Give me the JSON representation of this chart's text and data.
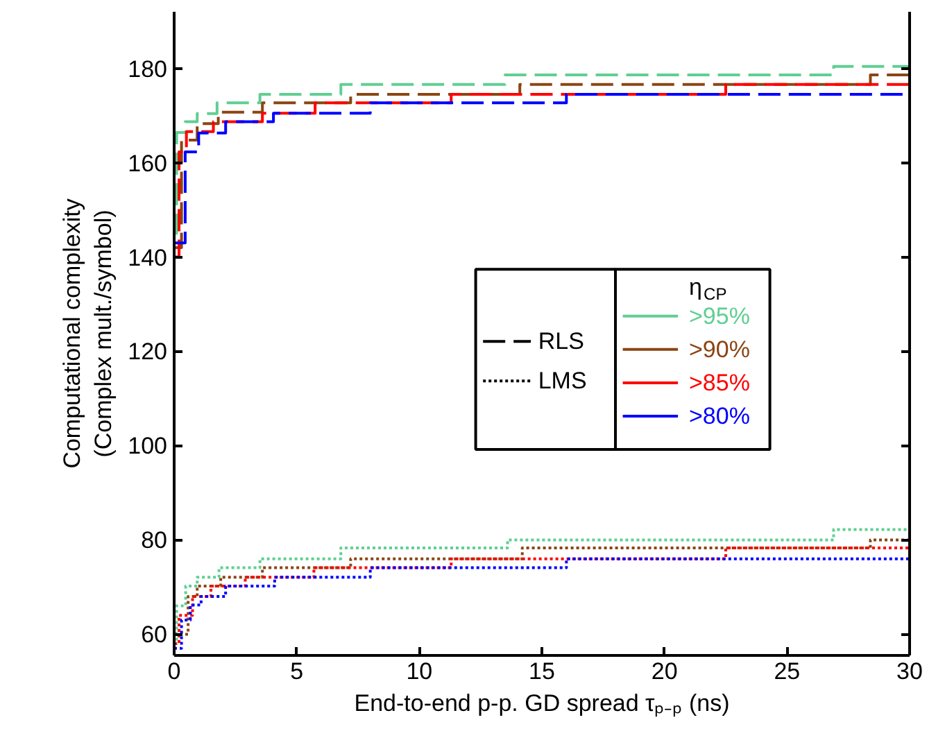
{
  "chart_data": {
    "type": "step",
    "xlabel": "End-to-end p-p. GD spread τₚ₋ₚ (ns)",
    "ylabel": "Computational complexity\n(Complex mult./symbol)",
    "legend_title": "η$_{CP}$",
    "annotations": [
      "RLS",
      "LMS"
    ],
    "xlim": [
      0,
      30
    ],
    "ylim": [
      55.5,
      192
    ],
    "xticks": [
      0,
      5,
      10,
      15,
      20,
      25,
      30
    ],
    "yticks": [
      60,
      80,
      100,
      120,
      140,
      160,
      180
    ],
    "grid": false,
    "legend": "right",
    "series": [
      {
        "name": ">95%",
        "color": "#5fcf92",
        "line_style": "dashed",
        "x": [
          0,
          0.1,
          0.45,
          0.94,
          1.75,
          3.5,
          6.8,
          13.5,
          26.9,
          30
        ],
        "values": [
          145,
          166.4,
          168.7,
          170.4,
          172.7,
          174.5,
          176.6,
          178.6,
          180.4,
          180.4
        ]
      },
      {
        "name": ">90%",
        "color": "#8b4513",
        "line_style": "dashed",
        "x": [
          0,
          0.3,
          0.94,
          1.8,
          3.6,
          7.2,
          14.1,
          28.4,
          30
        ],
        "values": [
          142,
          164.8,
          168.3,
          170.7,
          172.7,
          174.5,
          176.6,
          178.6,
          178.6
        ]
      },
      {
        "name": ">85%",
        "color": "#ff0000",
        "line_style": "dashed",
        "x": [
          0,
          0.2,
          0.5,
          1.6,
          3.6,
          5.75,
          11.3,
          22.5,
          30
        ],
        "values": [
          140,
          162.3,
          166.6,
          168.7,
          170.5,
          172.7,
          174.5,
          176.6,
          176.6
        ]
      },
      {
        "name": ">80%",
        "color": "#0000ff",
        "line_style": "dashed",
        "x": [
          0,
          0.45,
          1.0,
          2.1,
          4.05,
          8.0,
          16.0,
          30
        ],
        "values": [
          143,
          162.3,
          166.3,
          168.7,
          170.5,
          172.7,
          174.5,
          174.5
        ]
      },
      {
        "color": "#5fcf92",
        "line_style": "dotted",
        "x": [
          0,
          0.1,
          0.47,
          0.94,
          1.83,
          3.5,
          6.8,
          13.6,
          26.9,
          30
        ],
        "values": [
          58,
          66,
          70.2,
          72.1,
          74.1,
          76,
          78.3,
          80,
          82.2,
          82.2
        ]
      },
      {
        "color": "#8b4513",
        "line_style": "dotted",
        "x": [
          0,
          0.57,
          0.94,
          1.9,
          3.6,
          7.2,
          14.2,
          28.4,
          30
        ],
        "values": [
          60,
          68,
          70.2,
          72.1,
          74.1,
          76,
          78.3,
          80,
          80
        ]
      },
      {
        "color": "#ff0000",
        "line_style": "dotted",
        "x": [
          0,
          0.2,
          0.75,
          1.5,
          2.9,
          5.7,
          11.3,
          22.5,
          30
        ],
        "values": [
          58,
          64,
          68,
          70.2,
          72.1,
          74.1,
          76,
          78.3,
          78.3
        ]
      },
      {
        "color": "#0000ff",
        "line_style": "dotted",
        "x": [
          0,
          0.3,
          0.66,
          1.1,
          2.1,
          4.1,
          8.0,
          16.0,
          30
        ],
        "values": [
          57,
          63,
          66.2,
          68,
          70.2,
          72.1,
          74.1,
          76,
          76
        ]
      }
    ]
  }
}
